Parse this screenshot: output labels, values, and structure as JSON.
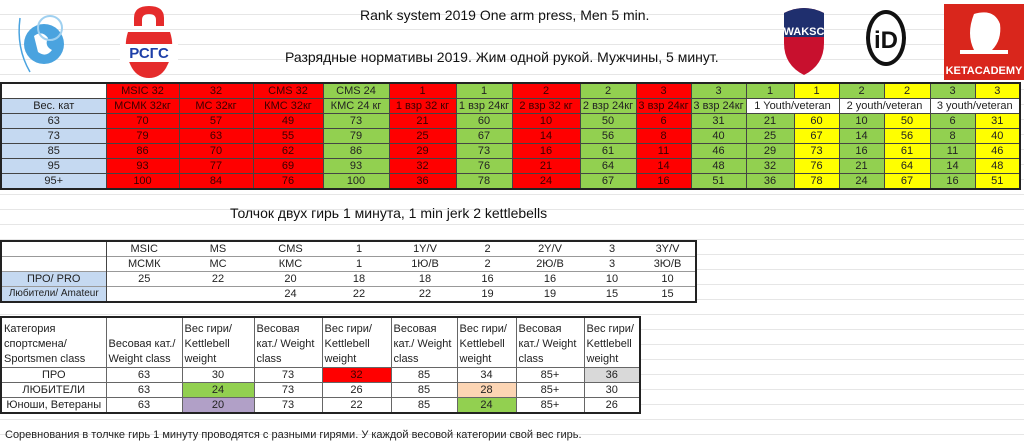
{
  "header": {
    "title_en": "Rank system 2019   One arm press, Men 5 min.",
    "title_ru": "Разрядные нормативы 2019. Жим одной рукой. Мужчины, 5 минут."
  },
  "logos": {
    "iksu": "International Union of Kettlebell Sport Clubs",
    "rsgs": "РСГС",
    "rsgs_sub": "РОССИЙСКИЙ СОЮЗ ГИРЕВОГО СПОРТА",
    "wakso": "WAKSC",
    "wakso_top": "ONLINE",
    "wakso_sub": "WORLD CUP",
    "id": "iD",
    "id_sub": "WWW.IDKBC.COM",
    "keta": "KETACADEMY"
  },
  "colors": {
    "red": "#ff0000",
    "green": "#92d050",
    "yellow": "#ffff00",
    "blue": "#c5d9f1"
  },
  "press": {
    "row1": [
      "",
      "MSIC 32",
      "32",
      "CMS 32",
      "CMS 24",
      "1",
      "1",
      "2",
      "2",
      "3",
      "3",
      "1",
      "1",
      "2",
      "2",
      "3",
      "3"
    ],
    "row2": [
      "Вес. кат",
      "МСМК 32кг",
      "МС 32кг",
      "КМС 32кг",
      "КМС 24 кг",
      "1 взр 32 кг",
      "1 взр 24кг",
      "2 взр 32 кг",
      "2 взр 24кг",
      "3 взр 24кг",
      "3 взр 24кг",
      "1 Youth/veteran",
      "2 youth/veteran",
      "3 youth/veteran"
    ],
    "col_colors": [
      "b",
      "r",
      "r",
      "r",
      "g",
      "r",
      "g",
      "r",
      "g",
      "r",
      "g",
      "g",
      "y",
      "g",
      "y",
      "g",
      "y"
    ],
    "rows": [
      [
        "63",
        "70",
        "57",
        "49",
        "73",
        "21",
        "60",
        "10",
        "50",
        "6",
        "31",
        "21",
        "60",
        "10",
        "50",
        "6",
        "31"
      ],
      [
        "73",
        "79",
        "63",
        "55",
        "79",
        "25",
        "67",
        "14",
        "56",
        "8",
        "40",
        "25",
        "67",
        "14",
        "56",
        "8",
        "40"
      ],
      [
        "85",
        "86",
        "70",
        "62",
        "86",
        "29",
        "73",
        "16",
        "61",
        "11",
        "46",
        "29",
        "73",
        "16",
        "61",
        "11",
        "46"
      ],
      [
        "95",
        "93",
        "77",
        "69",
        "93",
        "32",
        "76",
        "21",
        "64",
        "14",
        "48",
        "32",
        "76",
        "21",
        "64",
        "14",
        "48"
      ],
      [
        "95+",
        "100",
        "84",
        "76",
        "100",
        "36",
        "78",
        "24",
        "67",
        "16",
        "51",
        "36",
        "78",
        "24",
        "67",
        "16",
        "51"
      ]
    ]
  },
  "jerk": {
    "title": "Толчок двух гирь 1 минута, 1 min jerk 2 kettlebells",
    "rows": [
      [
        "",
        "MSIC",
        "MS",
        "CMS",
        "1",
        "1Y/V",
        "2",
        "2Y/V",
        "3",
        "3Y/V"
      ],
      [
        "",
        "МСМК",
        "МС",
        "КМС",
        "1",
        "1Ю/В",
        "2",
        "2Ю/В",
        "3",
        "3Ю/В"
      ],
      [
        "ПРО/ PRO",
        "25",
        "22",
        "20",
        "18",
        "18",
        "16",
        "16",
        "10",
        "10"
      ],
      [
        "Любители/ Amateur",
        "",
        "",
        "24",
        "22",
        "22",
        "19",
        "19",
        "15",
        "15"
      ]
    ]
  },
  "weights": {
    "header": [
      "Категория спортсмена/ Sportsmen class",
      "Весовая кат./ Weight class",
      "Вес гири/ Kettlebell weight",
      "Весовая кат./ Weight class",
      "Вес гири/ Kettlebell weight",
      "Весовая кат./ Weight class",
      "Вес гири/ Kettlebell weight",
      "Весовая кат./ Weight class",
      "Вес гири/ Kettlebell weight"
    ],
    "rows": [
      [
        "ПРО",
        "63",
        "30",
        "73",
        "32",
        "85",
        "34",
        "85+",
        "36"
      ],
      [
        "ЛЮБИТЕЛИ",
        "63",
        "24",
        "73",
        "26",
        "85",
        "28",
        "85+",
        "30"
      ],
      [
        "Юноши, Ветераны",
        "63",
        "20",
        "73",
        "22",
        "85",
        "24",
        "85+",
        "26"
      ]
    ],
    "highlights": [
      [
        "",
        "",
        "",
        "",
        "r",
        "",
        "",
        "",
        "gr"
      ],
      [
        "",
        "",
        "g",
        "",
        "",
        "",
        "pe",
        "",
        ""
      ],
      [
        "",
        "",
        "pu",
        "",
        "",
        "",
        "g",
        "",
        ""
      ]
    ]
  },
  "footer": "Соревнования в толчке гирь 1 минуту проводятся с разными гирями. У каждой весовой категории свой вес гирь."
}
